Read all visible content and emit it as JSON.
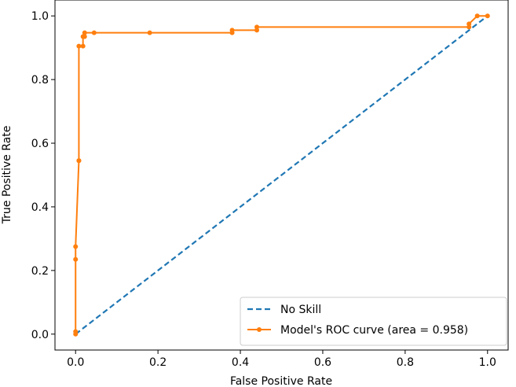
{
  "chart_data": {
    "type": "line",
    "title": "",
    "xlabel": "False Positive Rate",
    "ylabel": "True Positive Rate",
    "xlim": [
      -0.05,
      1.05
    ],
    "ylim": [
      -0.05,
      1.05
    ],
    "xticks": [
      "0.0",
      "0.2",
      "0.4",
      "0.6",
      "0.8",
      "1.0"
    ],
    "yticks": [
      "0.0",
      "0.2",
      "0.4",
      "0.6",
      "0.8",
      "1.0"
    ],
    "legend_position": "lower-right",
    "series": [
      {
        "name": "No Skill",
        "style": "dashed",
        "color": "#1f77b4",
        "x": [
          0,
          1
        ],
        "y": [
          0,
          1
        ]
      },
      {
        "name": "Model's ROC curve (area = 0.958)",
        "style": "solid-marker",
        "color": "#ff7f0e",
        "x": [
          0,
          0,
          0,
          0,
          0.008,
          0.008,
          0.008,
          0.018,
          0.018,
          0.022,
          0.022,
          0.045,
          0.18,
          0.38,
          0.38,
          0.44,
          0.44,
          0.955,
          0.955,
          0.975,
          1.0
        ],
        "y": [
          0,
          0.008,
          0.235,
          0.275,
          0.545,
          0.545,
          0.905,
          0.905,
          0.935,
          0.935,
          0.947,
          0.947,
          0.947,
          0.947,
          0.955,
          0.955,
          0.965,
          0.965,
          0.975,
          1.0,
          1.0
        ]
      }
    ]
  }
}
